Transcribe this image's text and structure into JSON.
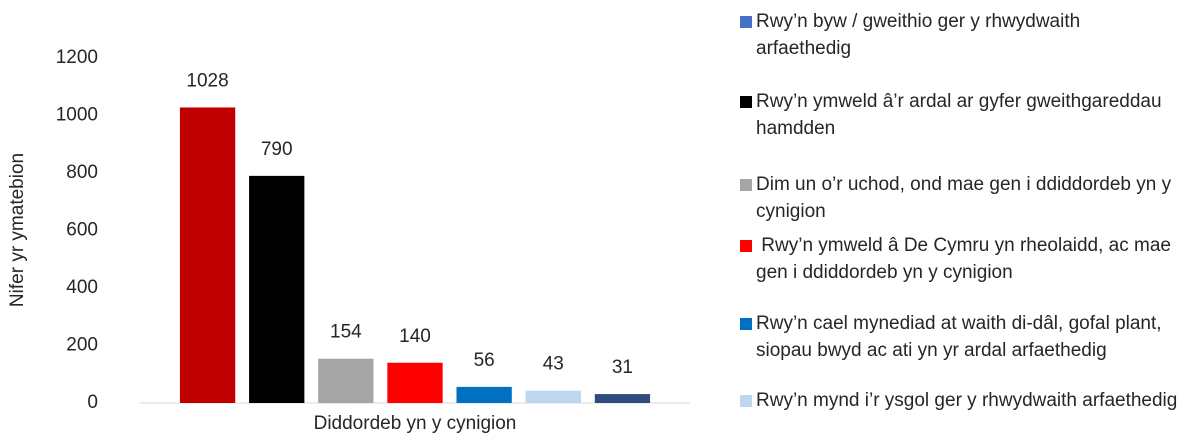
{
  "chart_data": {
    "type": "bar",
    "categories": [
      "Diddordeb yn y cynigion"
    ],
    "y_label": "Nifer yr ymatebion",
    "ylim": [
      0,
      1200
    ],
    "yticks": [
      0,
      200,
      400,
      600,
      800,
      1000,
      1200
    ],
    "grid": false,
    "legend": "right",
    "series": [
      {
        "name": "Rwy’n byw / gweithio ger y rhwydwaith arfaethedig",
        "color": "#c00000",
        "legend_color": "#4472c4",
        "values": [
          1028
        ]
      },
      {
        "name": "Rwy’n ymweld â’r ardal ar gyfer gweithgareddau hamdden",
        "color": "#000000",
        "values": [
          790
        ]
      },
      {
        "name": "Dim un o’r uchod, ond mae gen i ddiddordeb yn y cynigion",
        "color": "#a5a5a5",
        "values": [
          154
        ]
      },
      {
        "name": " Rwy’n ymweld â De Cymru yn rheolaidd, ac mae gen i ddiddordeb yn y cynigion",
        "color": "#ff0000",
        "values": [
          140
        ]
      },
      {
        "name": "Rwy’n cael mynediad at waith di-dâl, gofal plant, siopau bwyd ac ati yn yr ardal arfaethedig",
        "color": "#0070c0",
        "values": [
          56
        ]
      },
      {
        "name": "Rwy’n mynd i’r ysgol ger y rhwydwaith arfaethedig",
        "color": "#bdd7ee",
        "values": [
          43
        ]
      },
      {
        "name": null,
        "color": "#2f4a7c",
        "values": [
          31
        ]
      }
    ]
  }
}
